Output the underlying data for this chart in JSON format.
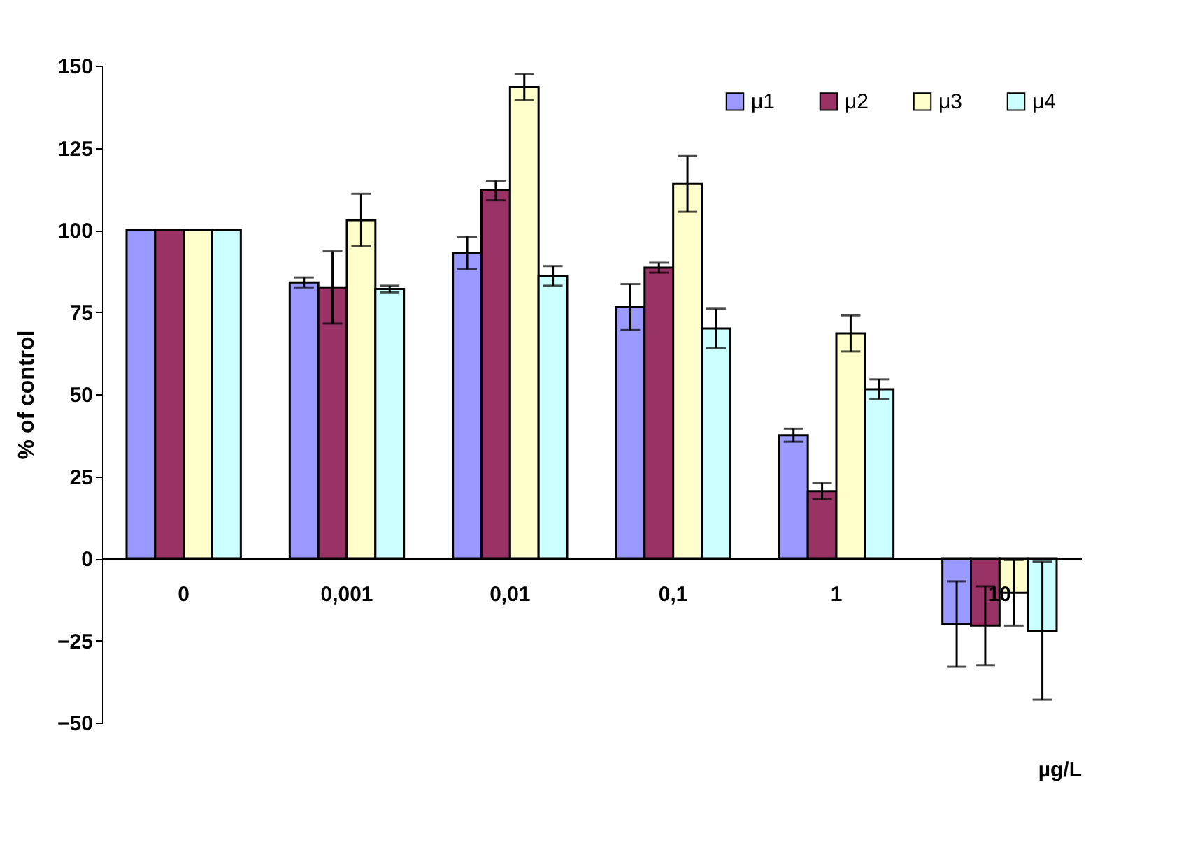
{
  "chart_data": {
    "type": "bar",
    "xlabel": "µg/L",
    "ylabel": "% of control",
    "categories": [
      "0",
      "0,001",
      "0,01",
      "0,1",
      "1",
      "10"
    ],
    "series": [
      {
        "name": "μ1",
        "color": "#9999ff",
        "values": [
          100,
          84,
          93,
          76.5,
          37.5,
          -20
        ],
        "errors": [
          null,
          1.5,
          5,
          7,
          2,
          13
        ]
      },
      {
        "name": "μ2",
        "color": "#993366",
        "values": [
          100,
          82.5,
          112,
          88.5,
          20.5,
          -20.5
        ],
        "errors": [
          null,
          11,
          3,
          1.5,
          2.5,
          12
        ]
      },
      {
        "name": "μ3",
        "color": "#ffffcc",
        "values": [
          100,
          103,
          143.5,
          114,
          68.5,
          -10.5
        ],
        "errors": [
          null,
          8,
          4,
          8.5,
          5.5,
          10
        ]
      },
      {
        "name": "μ4",
        "color": "#ccffff",
        "values": [
          100,
          82,
          86,
          70,
          51.5,
          -22
        ],
        "errors": [
          null,
          1,
          3,
          6,
          3,
          21
        ]
      }
    ],
    "ylim": [
      -50,
      150
    ],
    "yticks": [
      -50,
      -25,
      0,
      25,
      50,
      75,
      100,
      125,
      150
    ],
    "grid": false,
    "legend": "top right"
  }
}
